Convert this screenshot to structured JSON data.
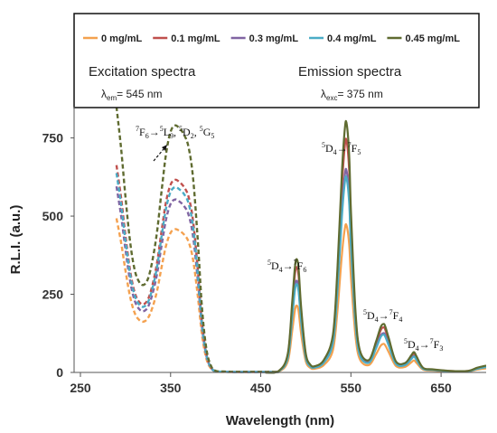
{
  "chart_data": {
    "type": "line",
    "xlabel": "Wavelength (nm)",
    "ylabel": "R.L.I. (a.u.)",
    "xlim": [
      250,
      700
    ],
    "ylim": [
      0,
      850
    ],
    "xticks": [
      "250",
      "350",
      "450",
      "550",
      "650"
    ],
    "yticks": [
      "0",
      "250",
      "500",
      "750"
    ],
    "grid": false,
    "legend_position": "top",
    "series": [
      {
        "name": "0 mg/mL",
        "color": "#f4a14f",
        "scale": 0.58,
        "emission_scale": 0.59
      },
      {
        "name": "0.1 mg/mL",
        "color": "#c0504d",
        "scale": 0.78,
        "emission_scale": 0.93
      },
      {
        "name": "0.3 mg/mL",
        "color": "#8064a2",
        "scale": 0.7,
        "emission_scale": 0.81
      },
      {
        "name": "0.4 mg/mL",
        "color": "#4bacc6",
        "scale": 0.75,
        "emission_scale": 0.78
      },
      {
        "name": "0.45 mg/mL",
        "color": "#5f6b30",
        "scale": 1.0,
        "emission_scale": 1.0
      }
    ],
    "excitation_ref": {
      "x": [
        290,
        295,
        300,
        305,
        310,
        315,
        320,
        325,
        330,
        335,
        340,
        345,
        350,
        355,
        360,
        365,
        370,
        375,
        380,
        385,
        390,
        395,
        400,
        410,
        420,
        430,
        440,
        450,
        460,
        470
      ],
      "y": [
        850,
        720,
        560,
        420,
        330,
        290,
        280,
        300,
        360,
        450,
        580,
        700,
        770,
        790,
        780,
        760,
        720,
        620,
        430,
        200,
        70,
        20,
        5,
        3,
        2,
        2,
        2,
        2,
        2,
        2
      ]
    },
    "emission_ref": {
      "x": [
        455,
        470,
        480,
        485,
        488,
        490,
        492,
        495,
        500,
        505,
        510,
        520,
        530,
        535,
        540,
        543,
        545,
        548,
        550,
        555,
        560,
        570,
        578,
        583,
        586,
        588,
        592,
        600,
        610,
        617,
        620,
        623,
        630,
        640,
        660,
        680,
        690,
        700
      ],
      "y": [
        0,
        5,
        60,
        230,
        340,
        362,
        330,
        200,
        60,
        25,
        20,
        40,
        120,
        330,
        640,
        770,
        800,
        700,
        520,
        200,
        70,
        40,
        100,
        145,
        155,
        148,
        110,
        35,
        30,
        55,
        65,
        50,
        15,
        10,
        5,
        5,
        15,
        22
      ]
    },
    "annotations": [
      {
        "main": "F",
        "pre1": "7",
        "sub1": "6",
        "arrow": "→",
        "pre2": "5",
        "main2": "L",
        "sub2": "9",
        "rest": ", ",
        "pre3": "5",
        "main3": "D",
        "sub3": "2",
        "rest2": ", ",
        "pre4": "5",
        "main4": "G",
        "sub4": "5"
      },
      {
        "pre1": "5",
        "main1": "D",
        "sub1": "4",
        "arrow": "→",
        "pre2": "7",
        "main2": "F",
        "sub2": "5"
      },
      {
        "pre1": "5",
        "main1": "D",
        "sub1": "4",
        "arrow": "→",
        "pre2": "7",
        "main2": "F",
        "sub2": "6"
      },
      {
        "pre1": "5",
        "main1": "D",
        "sub1": "4",
        "arrow": "→",
        "pre2": "7",
        "main2": "F",
        "sub2": "4"
      },
      {
        "pre1": "5",
        "main1": "D",
        "sub1": "4",
        "arrow": "→",
        "pre2": "7",
        "main2": "F",
        "sub2": "3"
      }
    ]
  },
  "info_box": {
    "excitation_title": "Excitation spectra",
    "excitation_param": {
      "symbol": "λ",
      "sub": "em",
      "value": "= 545 nm"
    },
    "emission_title": "Emission spectra",
    "emission_param": {
      "symbol": "λ",
      "sub": "exc",
      "value": "= 375 nm"
    }
  }
}
